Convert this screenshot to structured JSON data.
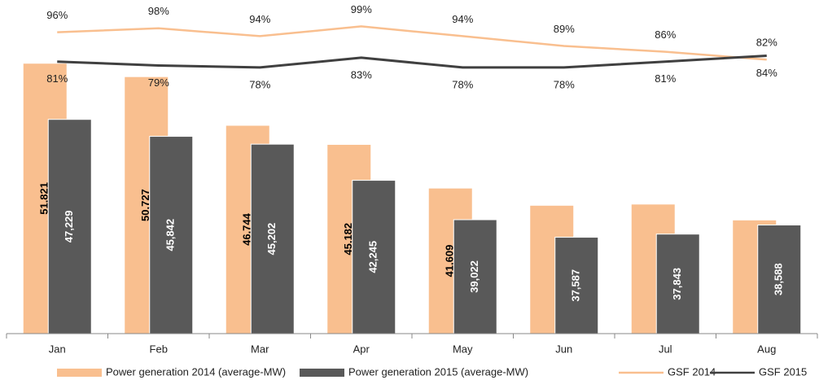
{
  "chart_data": {
    "type": "combo",
    "categories": [
      "Jan",
      "Feb",
      "Mar",
      "Apr",
      "May",
      "Jun",
      "Jul",
      "Aug"
    ],
    "ylim": [
      29700,
      55000
    ],
    "y2lim": [
      -58,
      100
    ],
    "series": [
      {
        "name": "Power generation 2014 (average-MW)",
        "type": "bar",
        "color": "#f9bf8f",
        "values": [
          51821,
          50727,
          46744,
          45182,
          41609,
          40200,
          40300,
          39000
        ],
        "value_labels": [
          "51,821",
          "50,727",
          "46,744",
          "45,182",
          "41,609",
          null,
          null,
          null
        ]
      },
      {
        "name": "Power generation 2015 (average-MW)",
        "type": "bar",
        "color": "#595959",
        "values": [
          47229,
          45842,
          45202,
          42245,
          39022,
          37587,
          37843,
          38588
        ],
        "value_labels": [
          "47,229",
          "45,842",
          "45,202",
          "42,245",
          "39,022",
          "37,587",
          "37,843",
          "38,588"
        ]
      },
      {
        "name": "GSF 2014",
        "type": "line",
        "axis": "y2",
        "color": "#f9bf8f",
        "values": [
          96,
          98,
          94,
          99,
          94,
          89,
          86,
          82
        ],
        "value_labels": [
          "96%",
          "98%",
          "94%",
          "99%",
          "94%",
          "89%",
          "86%",
          "82%"
        ]
      },
      {
        "name": "GSF 2015",
        "type": "line",
        "axis": "y2",
        "color": "#404040",
        "values": [
          81,
          79,
          78,
          83,
          78,
          78,
          81,
          84
        ],
        "value_labels": [
          "81%",
          "79%",
          "78%",
          "83%",
          "78%",
          "78%",
          "81%",
          "84%"
        ]
      }
    ]
  }
}
